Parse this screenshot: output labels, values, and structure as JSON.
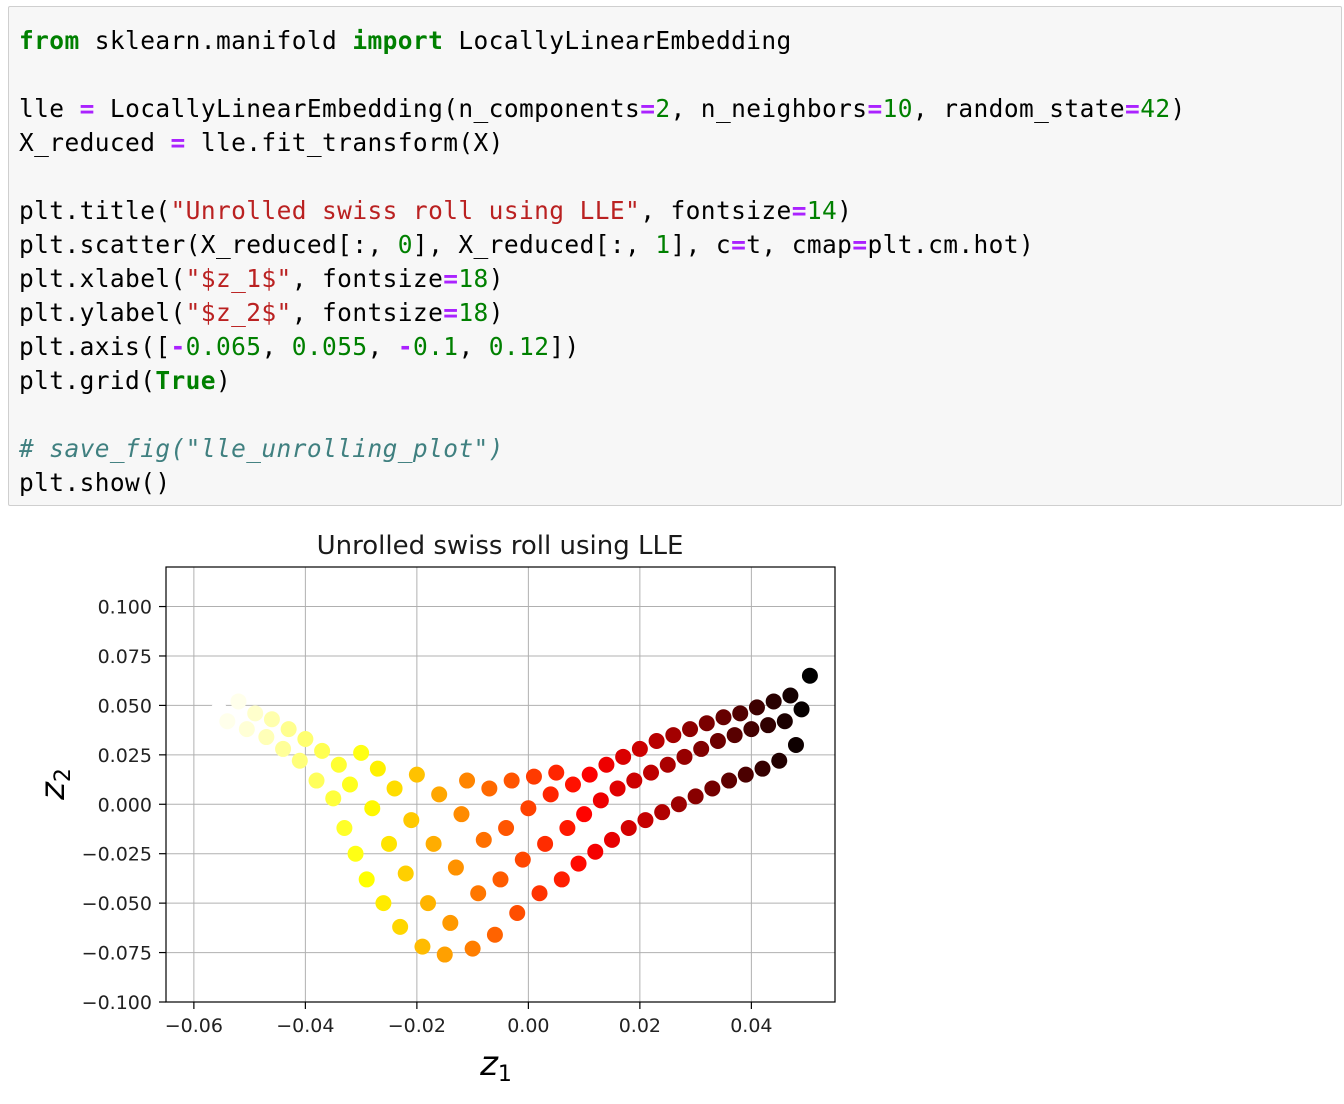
{
  "code_cell": {
    "lines": [
      [
        {
          "t": "from",
          "c": "kw"
        },
        {
          "t": " sklearn.manifold "
        },
        {
          "t": "import",
          "c": "kw"
        },
        {
          "t": " LocallyLinearEmbedding"
        }
      ],
      [],
      [
        {
          "t": "lle "
        },
        {
          "t": "=",
          "c": "op"
        },
        {
          "t": " LocallyLinearEmbedding(n_components"
        },
        {
          "t": "=",
          "c": "op"
        },
        {
          "t": "2",
          "c": "num"
        },
        {
          "t": ", n_neighbors"
        },
        {
          "t": "=",
          "c": "op"
        },
        {
          "t": "10",
          "c": "num"
        },
        {
          "t": ", random_state"
        },
        {
          "t": "=",
          "c": "op"
        },
        {
          "t": "42",
          "c": "num"
        },
        {
          "t": ")"
        }
      ],
      [
        {
          "t": "X_reduced "
        },
        {
          "t": "=",
          "c": "op"
        },
        {
          "t": " lle.fit_transform(X)"
        }
      ],
      [],
      [
        {
          "t": "plt.title("
        },
        {
          "t": "\"Unrolled swiss roll using LLE\"",
          "c": "str"
        },
        {
          "t": ", fontsize"
        },
        {
          "t": "=",
          "c": "op"
        },
        {
          "t": "14",
          "c": "num"
        },
        {
          "t": ")"
        }
      ],
      [
        {
          "t": "plt.scatter(X_reduced[:, "
        },
        {
          "t": "0",
          "c": "num"
        },
        {
          "t": "], X_reduced[:, "
        },
        {
          "t": "1",
          "c": "num"
        },
        {
          "t": "], c"
        },
        {
          "t": "=",
          "c": "op"
        },
        {
          "t": "t, cmap"
        },
        {
          "t": "=",
          "c": "op"
        },
        {
          "t": "plt.cm.hot)"
        }
      ],
      [
        {
          "t": "plt.xlabel("
        },
        {
          "t": "\"$z_1$\"",
          "c": "str"
        },
        {
          "t": ", fontsize"
        },
        {
          "t": "=",
          "c": "op"
        },
        {
          "t": "18",
          "c": "num"
        },
        {
          "t": ")"
        }
      ],
      [
        {
          "t": "plt.ylabel("
        },
        {
          "t": "\"$z_2$\"",
          "c": "str"
        },
        {
          "t": ", fontsize"
        },
        {
          "t": "=",
          "c": "op"
        },
        {
          "t": "18",
          "c": "num"
        },
        {
          "t": ")"
        }
      ],
      [
        {
          "t": "plt.axis(["
        },
        {
          "t": "-",
          "c": "op"
        },
        {
          "t": "0.065",
          "c": "num"
        },
        {
          "t": ", "
        },
        {
          "t": "0.055",
          "c": "num"
        },
        {
          "t": ", "
        },
        {
          "t": "-",
          "c": "op"
        },
        {
          "t": "0.1",
          "c": "num"
        },
        {
          "t": ", "
        },
        {
          "t": "0.12",
          "c": "num"
        },
        {
          "t": "])"
        }
      ],
      [
        {
          "t": "plt.grid("
        },
        {
          "t": "True",
          "c": "kw"
        },
        {
          "t": ")"
        }
      ],
      [],
      [
        {
          "t": "# save_fig(\"lle_unrolling_plot\")",
          "c": "cm"
        }
      ],
      [
        {
          "t": "plt.show()"
        }
      ]
    ]
  },
  "chart_data": {
    "type": "scatter",
    "title": "Unrolled swiss roll using LLE",
    "xlabel": "z",
    "xlabel_sub": "1",
    "ylabel": "z",
    "ylabel_sub": "2",
    "xlim": [
      -0.065,
      0.055
    ],
    "ylim": [
      -0.1,
      0.12
    ],
    "grid": true,
    "colormap": "hot",
    "xticks": [
      -0.06,
      -0.04,
      -0.02,
      0.0,
      0.02,
      0.04
    ],
    "xtick_labels": [
      "−0.06",
      "−0.04",
      "−0.02",
      "0.00",
      "0.02",
      "0.04"
    ],
    "yticks": [
      -0.1,
      -0.075,
      -0.05,
      -0.025,
      0.0,
      0.025,
      0.05,
      0.075,
      0.1
    ],
    "ytick_labels": [
      "−0.100",
      "−0.075",
      "−0.050",
      "−0.025",
      "0.000",
      "0.025",
      "0.050",
      "0.075",
      "0.100"
    ],
    "point_color_range": [
      "#ffffe6",
      "#000000"
    ],
    "points": [
      {
        "x": -0.0555,
        "y": 0.048,
        "t": 0.0
      },
      {
        "x": -0.054,
        "y": 0.042,
        "t": 0.02
      },
      {
        "x": -0.052,
        "y": 0.052,
        "t": 0.02
      },
      {
        "x": -0.0505,
        "y": 0.038,
        "t": 0.04
      },
      {
        "x": -0.049,
        "y": 0.046,
        "t": 0.05
      },
      {
        "x": -0.047,
        "y": 0.034,
        "t": 0.07
      },
      {
        "x": -0.046,
        "y": 0.043,
        "t": 0.08
      },
      {
        "x": -0.044,
        "y": 0.028,
        "t": 0.1
      },
      {
        "x": -0.043,
        "y": 0.038,
        "t": 0.11
      },
      {
        "x": -0.041,
        "y": 0.022,
        "t": 0.13
      },
      {
        "x": -0.04,
        "y": 0.033,
        "t": 0.14
      },
      {
        "x": -0.038,
        "y": 0.012,
        "t": 0.16
      },
      {
        "x": -0.037,
        "y": 0.027,
        "t": 0.17
      },
      {
        "x": -0.035,
        "y": 0.003,
        "t": 0.19
      },
      {
        "x": -0.034,
        "y": 0.02,
        "t": 0.2
      },
      {
        "x": -0.033,
        "y": -0.012,
        "t": 0.21
      },
      {
        "x": -0.032,
        "y": 0.01,
        "t": 0.22
      },
      {
        "x": -0.031,
        "y": -0.025,
        "t": 0.23
      },
      {
        "x": -0.03,
        "y": 0.026,
        "t": 0.23
      },
      {
        "x": -0.029,
        "y": -0.038,
        "t": 0.25
      },
      {
        "x": -0.028,
        "y": -0.002,
        "t": 0.26
      },
      {
        "x": -0.027,
        "y": 0.018,
        "t": 0.27
      },
      {
        "x": -0.026,
        "y": -0.05,
        "t": 0.28
      },
      {
        "x": -0.025,
        "y": -0.02,
        "t": 0.29
      },
      {
        "x": -0.024,
        "y": 0.008,
        "t": 0.3
      },
      {
        "x": -0.023,
        "y": -0.062,
        "t": 0.31
      },
      {
        "x": -0.022,
        "y": -0.035,
        "t": 0.32
      },
      {
        "x": -0.021,
        "y": -0.008,
        "t": 0.33
      },
      {
        "x": -0.02,
        "y": 0.015,
        "t": 0.34
      },
      {
        "x": -0.019,
        "y": -0.072,
        "t": 0.35
      },
      {
        "x": -0.018,
        "y": -0.05,
        "t": 0.36
      },
      {
        "x": -0.017,
        "y": -0.02,
        "t": 0.37
      },
      {
        "x": -0.016,
        "y": 0.005,
        "t": 0.38
      },
      {
        "x": -0.015,
        "y": -0.076,
        "t": 0.39
      },
      {
        "x": -0.014,
        "y": -0.06,
        "t": 0.4
      },
      {
        "x": -0.013,
        "y": -0.032,
        "t": 0.41
      },
      {
        "x": -0.012,
        "y": -0.005,
        "t": 0.42
      },
      {
        "x": -0.011,
        "y": 0.012,
        "t": 0.43
      },
      {
        "x": -0.01,
        "y": -0.073,
        "t": 0.44
      },
      {
        "x": -0.009,
        "y": -0.045,
        "t": 0.45
      },
      {
        "x": -0.008,
        "y": -0.018,
        "t": 0.46
      },
      {
        "x": -0.007,
        "y": 0.008,
        "t": 0.47
      },
      {
        "x": -0.006,
        "y": -0.066,
        "t": 0.48
      },
      {
        "x": -0.005,
        "y": -0.038,
        "t": 0.49
      },
      {
        "x": -0.004,
        "y": -0.012,
        "t": 0.5
      },
      {
        "x": -0.003,
        "y": 0.012,
        "t": 0.5
      },
      {
        "x": -0.002,
        "y": -0.055,
        "t": 0.51
      },
      {
        "x": -0.001,
        "y": -0.028,
        "t": 0.52
      },
      {
        "x": 0.0,
        "y": -0.002,
        "t": 0.53
      },
      {
        "x": 0.001,
        "y": 0.014,
        "t": 0.54
      },
      {
        "x": 0.002,
        "y": -0.045,
        "t": 0.55
      },
      {
        "x": 0.003,
        "y": -0.02,
        "t": 0.56
      },
      {
        "x": 0.004,
        "y": 0.005,
        "t": 0.57
      },
      {
        "x": 0.005,
        "y": 0.016,
        "t": 0.57
      },
      {
        "x": 0.006,
        "y": -0.038,
        "t": 0.58
      },
      {
        "x": 0.007,
        "y": -0.012,
        "t": 0.59
      },
      {
        "x": 0.008,
        "y": 0.01,
        "t": 0.6
      },
      {
        "x": 0.009,
        "y": -0.03,
        "t": 0.61
      },
      {
        "x": 0.01,
        "y": -0.005,
        "t": 0.62
      },
      {
        "x": 0.011,
        "y": 0.015,
        "t": 0.63
      },
      {
        "x": 0.012,
        "y": -0.024,
        "t": 0.64
      },
      {
        "x": 0.013,
        "y": 0.002,
        "t": 0.65
      },
      {
        "x": 0.014,
        "y": 0.02,
        "t": 0.65
      },
      {
        "x": 0.015,
        "y": -0.018,
        "t": 0.66
      },
      {
        "x": 0.016,
        "y": 0.008,
        "t": 0.67
      },
      {
        "x": 0.017,
        "y": 0.024,
        "t": 0.68
      },
      {
        "x": 0.018,
        "y": -0.012,
        "t": 0.69
      },
      {
        "x": 0.019,
        "y": 0.012,
        "t": 0.7
      },
      {
        "x": 0.02,
        "y": 0.028,
        "t": 0.7
      },
      {
        "x": 0.021,
        "y": -0.008,
        "t": 0.71
      },
      {
        "x": 0.022,
        "y": 0.016,
        "t": 0.72
      },
      {
        "x": 0.023,
        "y": 0.032,
        "t": 0.73
      },
      {
        "x": 0.024,
        "y": -0.004,
        "t": 0.74
      },
      {
        "x": 0.025,
        "y": 0.02,
        "t": 0.75
      },
      {
        "x": 0.026,
        "y": 0.035,
        "t": 0.76
      },
      {
        "x": 0.027,
        "y": 0.0,
        "t": 0.77
      },
      {
        "x": 0.028,
        "y": 0.024,
        "t": 0.78
      },
      {
        "x": 0.029,
        "y": 0.038,
        "t": 0.79
      },
      {
        "x": 0.03,
        "y": 0.004,
        "t": 0.8
      },
      {
        "x": 0.031,
        "y": 0.028,
        "t": 0.81
      },
      {
        "x": 0.032,
        "y": 0.041,
        "t": 0.82
      },
      {
        "x": 0.033,
        "y": 0.008,
        "t": 0.83
      },
      {
        "x": 0.034,
        "y": 0.032,
        "t": 0.84
      },
      {
        "x": 0.035,
        "y": 0.044,
        "t": 0.85
      },
      {
        "x": 0.036,
        "y": 0.012,
        "t": 0.86
      },
      {
        "x": 0.037,
        "y": 0.035,
        "t": 0.87
      },
      {
        "x": 0.038,
        "y": 0.046,
        "t": 0.88
      },
      {
        "x": 0.039,
        "y": 0.015,
        "t": 0.89
      },
      {
        "x": 0.04,
        "y": 0.038,
        "t": 0.9
      },
      {
        "x": 0.041,
        "y": 0.049,
        "t": 0.91
      },
      {
        "x": 0.042,
        "y": 0.018,
        "t": 0.92
      },
      {
        "x": 0.043,
        "y": 0.04,
        "t": 0.93
      },
      {
        "x": 0.044,
        "y": 0.052,
        "t": 0.94
      },
      {
        "x": 0.045,
        "y": 0.022,
        "t": 0.95
      },
      {
        "x": 0.046,
        "y": 0.042,
        "t": 0.96
      },
      {
        "x": 0.047,
        "y": 0.055,
        "t": 0.97
      },
      {
        "x": 0.048,
        "y": 0.03,
        "t": 0.98
      },
      {
        "x": 0.049,
        "y": 0.048,
        "t": 0.99
      },
      {
        "x": 0.0505,
        "y": 0.065,
        "t": 1.0
      }
    ]
  }
}
